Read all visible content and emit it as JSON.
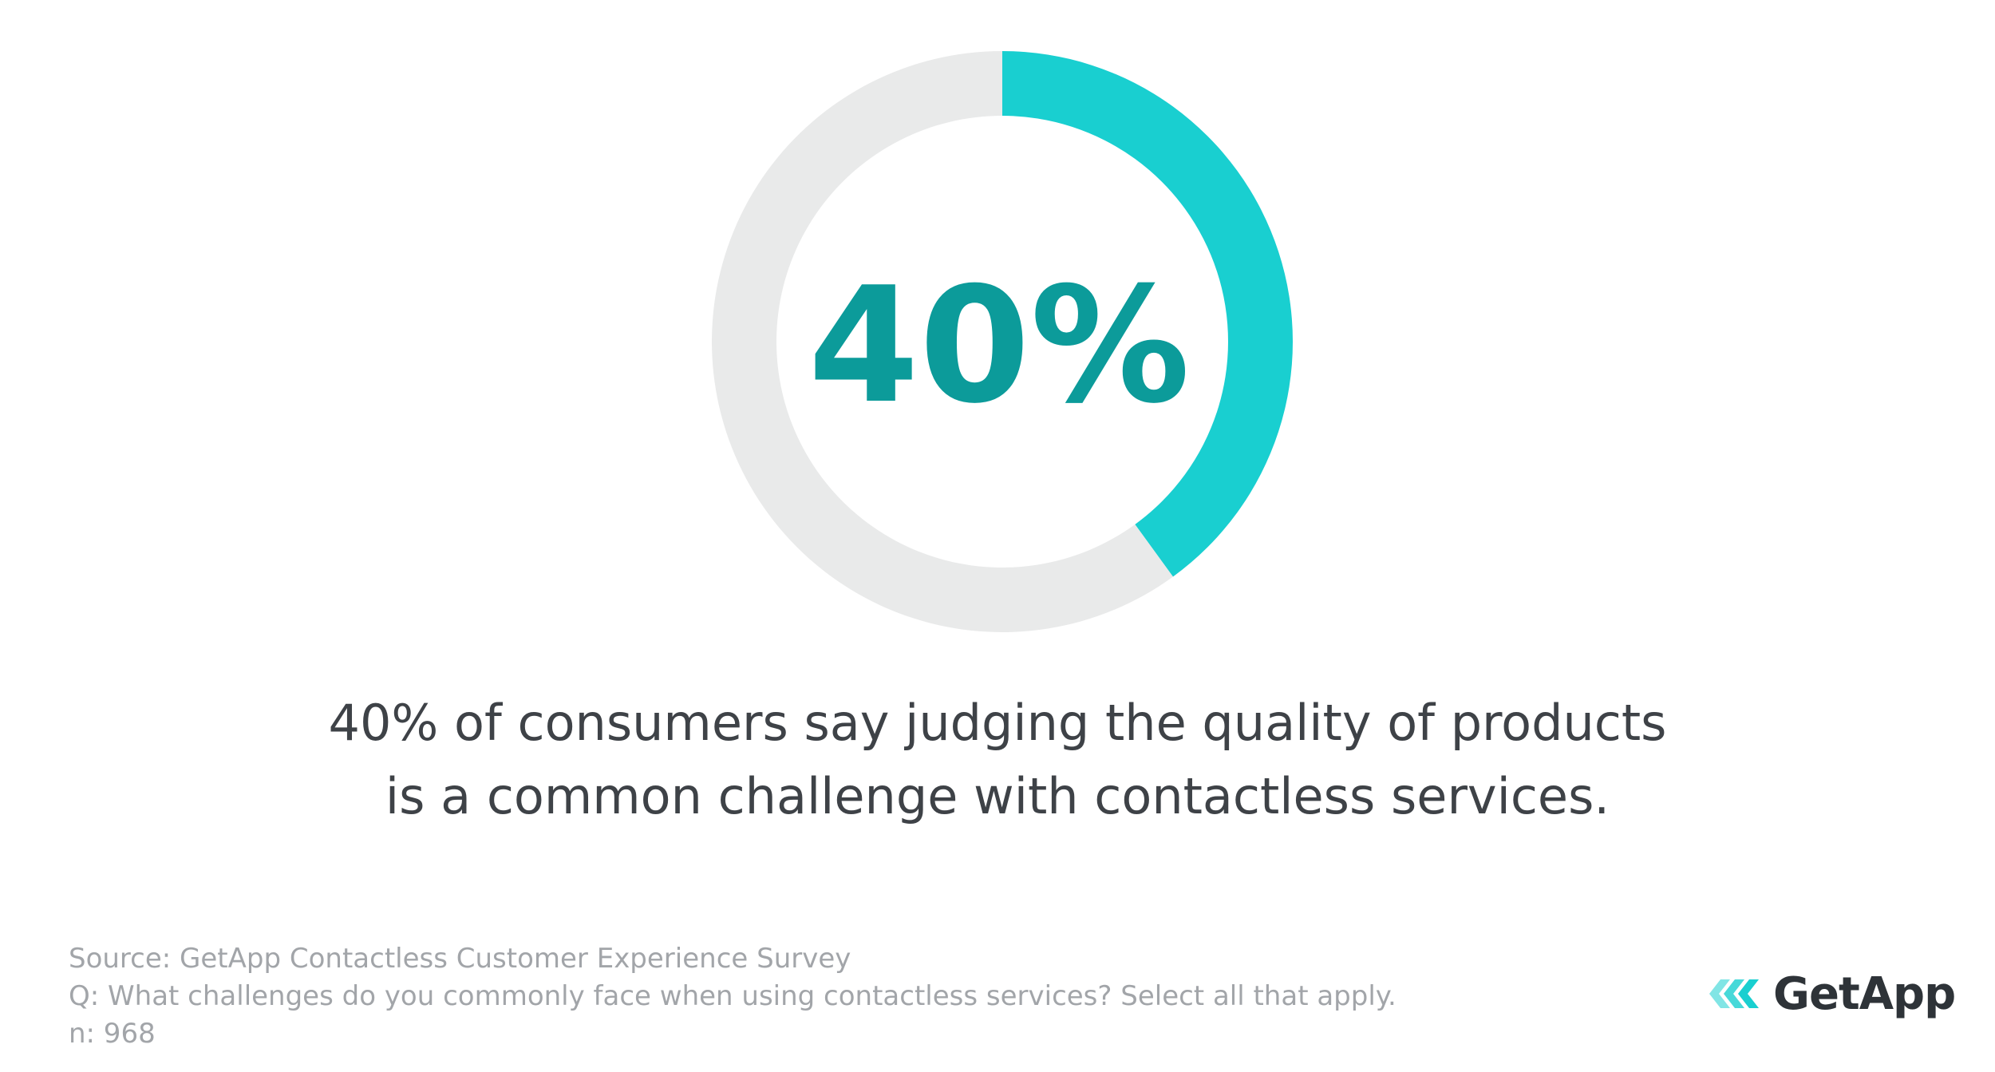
{
  "chart_data": {
    "type": "pie",
    "style": "donut",
    "value_label": "40%",
    "slices": [
      {
        "label": "",
        "value": 40,
        "color": "#19cfd0"
      },
      {
        "label": "",
        "value": 60,
        "color": "#e9eaea"
      }
    ],
    "center_label_color": "#0c9b9a"
  },
  "headline": {
    "line1": "40% of consumers say judging the quality of products",
    "line2": "is a common challenge with contactless services."
  },
  "footnote": {
    "source": "Source: GetApp Contactless Customer Experience Survey",
    "question": "Q: What challenges do you commonly face when using contactless services? Select all that apply.",
    "sample": "n: 968"
  },
  "logo": {
    "text": "GetApp",
    "icon": "getapp-chevrons-icon"
  },
  "colors": {
    "accent": "#19cfd0",
    "accent_dark": "#0c9b9a",
    "track": "#e9eaea",
    "text": "#3e4247",
    "muted": "#a2a5a9"
  }
}
